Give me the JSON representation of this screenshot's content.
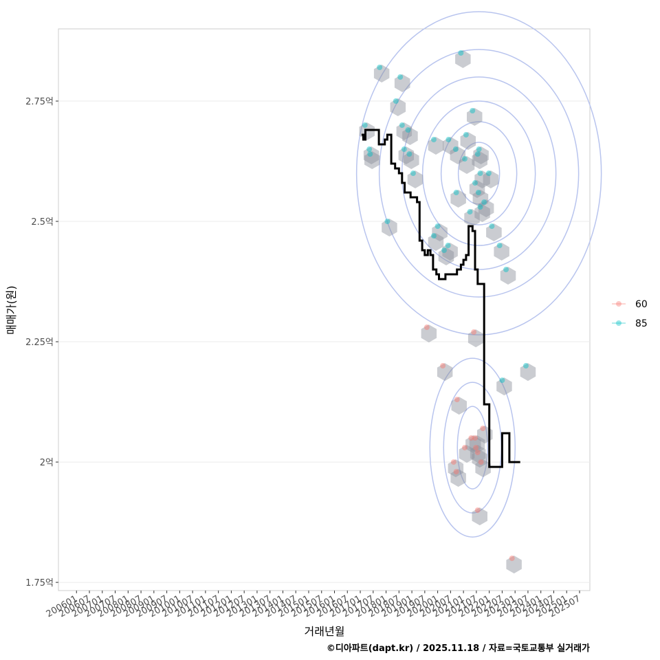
{
  "chart_data": {
    "type": "scatter",
    "xlabel": "거래년월",
    "ylabel": "매매가(원)",
    "caption": "©디아파트(dapt.kr) / 2025.11.18 / 자료=국토교통부 실거래가",
    "x_ticks": [
      "200601",
      "200607",
      "200701",
      "200707",
      "200801",
      "200807",
      "200901",
      "200907",
      "201001",
      "201007",
      "201101",
      "201107",
      "201201",
      "201207",
      "201301",
      "201307",
      "201401",
      "201407",
      "201501",
      "201507",
      "201601",
      "201607",
      "201701",
      "201707",
      "201801",
      "201807",
      "201901",
      "201907",
      "202001",
      "202007",
      "202101",
      "202107",
      "202201",
      "202207",
      "202301",
      "202307",
      "202401",
      "202407",
      "202501",
      "202507"
    ],
    "y_ticks": [
      {
        "value": 1.75,
        "label": "1.75억"
      },
      {
        "value": 2.0,
        "label": "2억"
      },
      {
        "value": 2.25,
        "label": "2.25억"
      },
      {
        "value": 2.5,
        "label": "2.5억"
      },
      {
        "value": 2.75,
        "label": "2.75억"
      }
    ],
    "ylim": [
      1.733,
      2.9
    ],
    "legend": [
      {
        "name": "60",
        "color": "#F8766D"
      },
      {
        "name": "85",
        "color": "#00BFC4"
      }
    ],
    "legend_position": "right",
    "grid": true,
    "series": [
      {
        "name": "60",
        "color": "#F8766D",
        "points": [
          [
            2019.58,
            2.28
          ],
          [
            2020.2,
            2.2
          ],
          [
            2020.75,
            2.13
          ],
          [
            2020.62,
            2.0
          ],
          [
            2020.72,
            1.98
          ],
          [
            2021.3,
            2.05
          ],
          [
            2021.45,
            2.05
          ],
          [
            2021.05,
            2.03
          ],
          [
            2021.48,
            2.03
          ],
          [
            2021.55,
            2.02
          ],
          [
            2021.68,
            2.0
          ],
          [
            2021.75,
            2.07
          ],
          [
            2021.4,
            2.27
          ],
          [
            2021.55,
            1.9
          ],
          [
            2022.88,
            1.8
          ]
        ]
      },
      {
        "name": "85",
        "color": "#00BFC4",
        "points": [
          [
            2017.18,
            2.7
          ],
          [
            2017.38,
            2.64
          ],
          [
            2017.35,
            2.65
          ],
          [
            2017.75,
            2.82
          ],
          [
            2018.55,
            2.8
          ],
          [
            2018.38,
            2.75
          ],
          [
            2018.62,
            2.7
          ],
          [
            2018.85,
            2.69
          ],
          [
            2018.7,
            2.65
          ],
          [
            2018.9,
            2.64
          ],
          [
            2019.05,
            2.6
          ],
          [
            2019.85,
            2.67
          ],
          [
            2020.42,
            2.67
          ],
          [
            2020.7,
            2.65
          ],
          [
            2021.05,
            2.63
          ],
          [
            2021.1,
            2.68
          ],
          [
            2021.55,
            2.64
          ],
          [
            2021.6,
            2.65
          ],
          [
            2021.65,
            2.6
          ],
          [
            2021.98,
            2.6
          ],
          [
            2021.45,
            2.58
          ],
          [
            2021.58,
            2.56
          ],
          [
            2021.8,
            2.54
          ],
          [
            2021.65,
            2.53
          ],
          [
            2021.25,
            2.52
          ],
          [
            2020.72,
            2.56
          ],
          [
            2020.0,
            2.49
          ],
          [
            2019.85,
            2.47
          ],
          [
            2020.25,
            2.44
          ],
          [
            2020.4,
            2.45
          ],
          [
            2022.1,
            2.49
          ],
          [
            2022.4,
            2.45
          ],
          [
            2022.65,
            2.4
          ],
          [
            2022.5,
            2.17
          ],
          [
            2023.42,
            2.2
          ],
          [
            2018.05,
            2.5
          ],
          [
            2021.35,
            2.73
          ],
          [
            2020.9,
            2.85
          ]
        ]
      }
    ],
    "median_line": [
      [
        2017.05,
        2.68
      ],
      [
        2017.12,
        2.67
      ],
      [
        2017.2,
        2.69
      ],
      [
        2017.55,
        2.69
      ],
      [
        2017.72,
        2.66
      ],
      [
        2017.95,
        2.67
      ],
      [
        2018.05,
        2.68
      ],
      [
        2018.2,
        2.62
      ],
      [
        2018.35,
        2.61
      ],
      [
        2018.5,
        2.6
      ],
      [
        2018.62,
        2.58
      ],
      [
        2018.72,
        2.56
      ],
      [
        2018.95,
        2.55
      ],
      [
        2019.1,
        2.55
      ],
      [
        2019.2,
        2.54
      ],
      [
        2019.3,
        2.46
      ],
      [
        2019.4,
        2.44
      ],
      [
        2019.5,
        2.43
      ],
      [
        2019.62,
        2.44
      ],
      [
        2019.72,
        2.43
      ],
      [
        2019.82,
        2.4
      ],
      [
        2019.95,
        2.39
      ],
      [
        2020.05,
        2.38
      ],
      [
        2020.2,
        2.38
      ],
      [
        2020.3,
        2.39
      ],
      [
        2020.45,
        2.39
      ],
      [
        2020.6,
        2.39
      ],
      [
        2020.75,
        2.4
      ],
      [
        2020.9,
        2.41
      ],
      [
        2021.0,
        2.42
      ],
      [
        2021.1,
        2.43
      ],
      [
        2021.2,
        2.49
      ],
      [
        2021.35,
        2.48
      ],
      [
        2021.45,
        2.4
      ],
      [
        2021.55,
        2.37
      ],
      [
        2021.7,
        2.37
      ],
      [
        2021.8,
        2.12
      ],
      [
        2021.9,
        2.12
      ],
      [
        2022.0,
        1.99
      ],
      [
        2022.4,
        1.99
      ],
      [
        2022.5,
        2.06
      ],
      [
        2022.7,
        2.06
      ],
      [
        2022.78,
        2.0
      ],
      [
        2023.2,
        2.0
      ]
    ]
  }
}
